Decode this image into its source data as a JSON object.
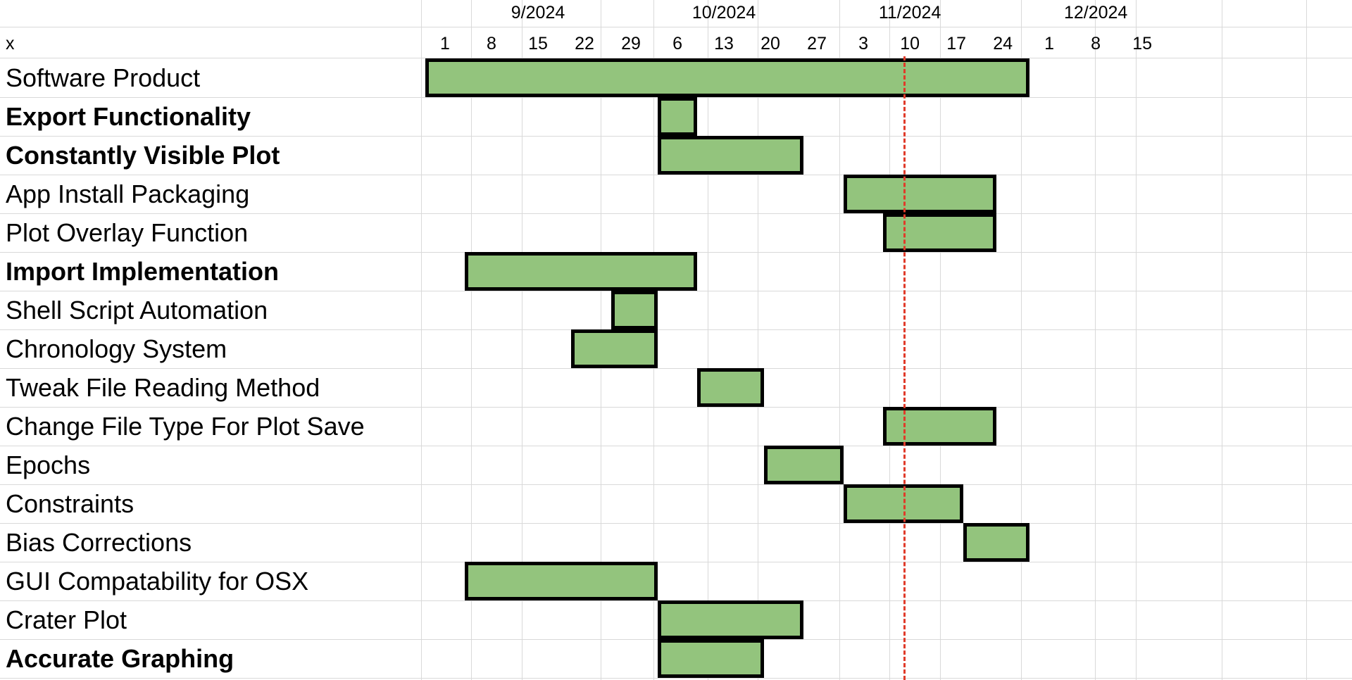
{
  "chart_data": {
    "type": "gantt",
    "corner_label": "x",
    "months": [
      {
        "label": "9/2024",
        "date": "2024-09-15"
      },
      {
        "label": "10/2024",
        "date": "2024-10-13"
      },
      {
        "label": "11/2024",
        "date": "2024-11-10"
      },
      {
        "label": "12/2024",
        "date": "2024-12-08"
      }
    ],
    "tick_dates": [
      "2024-09-01",
      "2024-09-08",
      "2024-09-15",
      "2024-09-22",
      "2024-09-29",
      "2024-10-06",
      "2024-10-13",
      "2024-10-20",
      "2024-10-27",
      "2024-11-03",
      "2024-11-10",
      "2024-11-17",
      "2024-11-24",
      "2024-12-01",
      "2024-12-08",
      "2024-12-15"
    ],
    "tick_labels": [
      "1",
      "8",
      "15",
      "22",
      "29",
      "6",
      "13",
      "20",
      "27",
      "3",
      "10",
      "17",
      "24",
      "1",
      "8",
      "15"
    ],
    "marker_date": "2024-11-09",
    "tasks": [
      {
        "name": "Software Product",
        "bold": false,
        "start": "2024-08-29",
        "end": "2024-11-28"
      },
      {
        "name": "Export Functionality",
        "bold": true,
        "start": "2024-10-03",
        "end": "2024-10-09"
      },
      {
        "name": "Constantly Visible Plot",
        "bold": true,
        "start": "2024-10-03",
        "end": "2024-10-25"
      },
      {
        "name": "App Install Packaging",
        "bold": false,
        "start": "2024-10-31",
        "end": "2024-11-23"
      },
      {
        "name": "Plot Overlay Function",
        "bold": false,
        "start": "2024-11-06",
        "end": "2024-11-23"
      },
      {
        "name": "Import Implementation",
        "bold": true,
        "start": "2024-09-04",
        "end": "2024-10-09"
      },
      {
        "name": "Shell Script Automation",
        "bold": false,
        "start": "2024-09-26",
        "end": "2024-10-03"
      },
      {
        "name": "Chronology System",
        "bold": false,
        "start": "2024-09-20",
        "end": "2024-10-03"
      },
      {
        "name": "Tweak File Reading Method",
        "bold": false,
        "start": "2024-10-09",
        "end": "2024-10-19"
      },
      {
        "name": "Change File Type For Plot Save",
        "bold": false,
        "start": "2024-11-06",
        "end": "2024-11-23"
      },
      {
        "name": "Epochs",
        "bold": false,
        "start": "2024-10-19",
        "end": "2024-10-31"
      },
      {
        "name": "Constraints",
        "bold": false,
        "start": "2024-10-31",
        "end": "2024-11-18"
      },
      {
        "name": "Bias Corrections",
        "bold": false,
        "start": "2024-11-18",
        "end": "2024-11-28"
      },
      {
        "name": "GUI Compatability for OSX",
        "bold": false,
        "start": "2024-09-04",
        "end": "2024-10-03"
      },
      {
        "name": "Crater Plot",
        "bold": false,
        "start": "2024-10-03",
        "end": "2024-10-25"
      },
      {
        "name": "Accurate Graphing",
        "bold": true,
        "start": "2024-10-03",
        "end": "2024-10-19"
      }
    ],
    "colors": {
      "bar_fill": "#93c47d",
      "bar_border": "#000000",
      "marker": "#e03b2a",
      "grid": "#d9d9d9"
    }
  }
}
